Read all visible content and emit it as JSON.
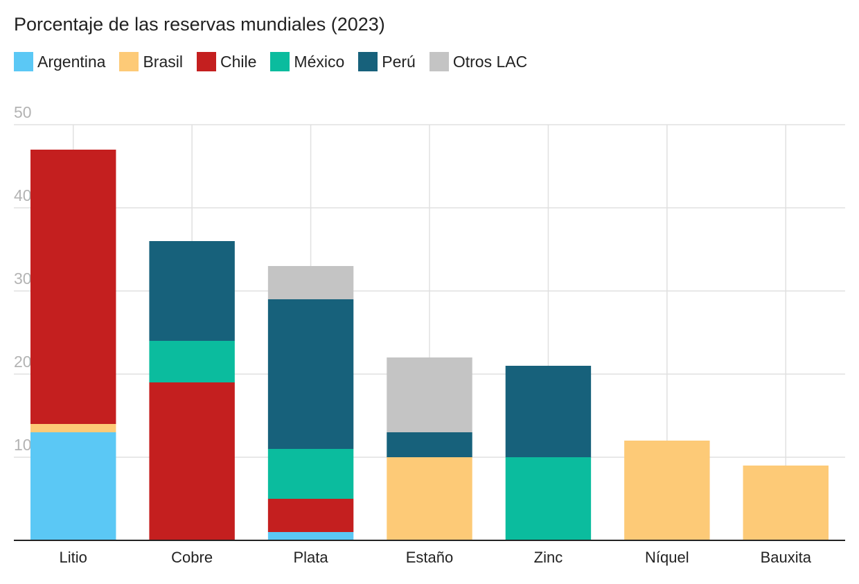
{
  "chart_data": {
    "type": "bar",
    "stacked": true,
    "title": "Porcentaje de las reservas mundiales (2023)",
    "xlabel": "",
    "ylabel": "",
    "ylim": [
      0,
      50
    ],
    "yticks": [
      10,
      20,
      30,
      40,
      50
    ],
    "grid": true,
    "legend_position": "top-left",
    "categories": [
      "Litio",
      "Cobre",
      "Plata",
      "Estaño",
      "Zinc",
      "Níquel",
      "Bauxita"
    ],
    "series": [
      {
        "name": "Argentina",
        "color": "#5bc8f5",
        "values": [
          13,
          0,
          1,
          0,
          0,
          0,
          0
        ]
      },
      {
        "name": "Brasil",
        "color": "#fdca77",
        "values": [
          1,
          0,
          0,
          10,
          0,
          12,
          9
        ]
      },
      {
        "name": "Chile",
        "color": "#c41f1f",
        "values": [
          33,
          19,
          4,
          0,
          0,
          0,
          0
        ]
      },
      {
        "name": "México",
        "color": "#0bbc9e",
        "values": [
          0,
          5,
          6,
          0,
          10,
          0,
          0
        ]
      },
      {
        "name": "Perú",
        "color": "#17617b",
        "values": [
          0,
          12,
          18,
          3,
          11,
          0,
          0
        ]
      },
      {
        "name": "Otros LAC",
        "color": "#c4c4c4",
        "values": [
          0,
          0,
          4,
          9,
          0,
          0,
          0
        ]
      }
    ]
  }
}
